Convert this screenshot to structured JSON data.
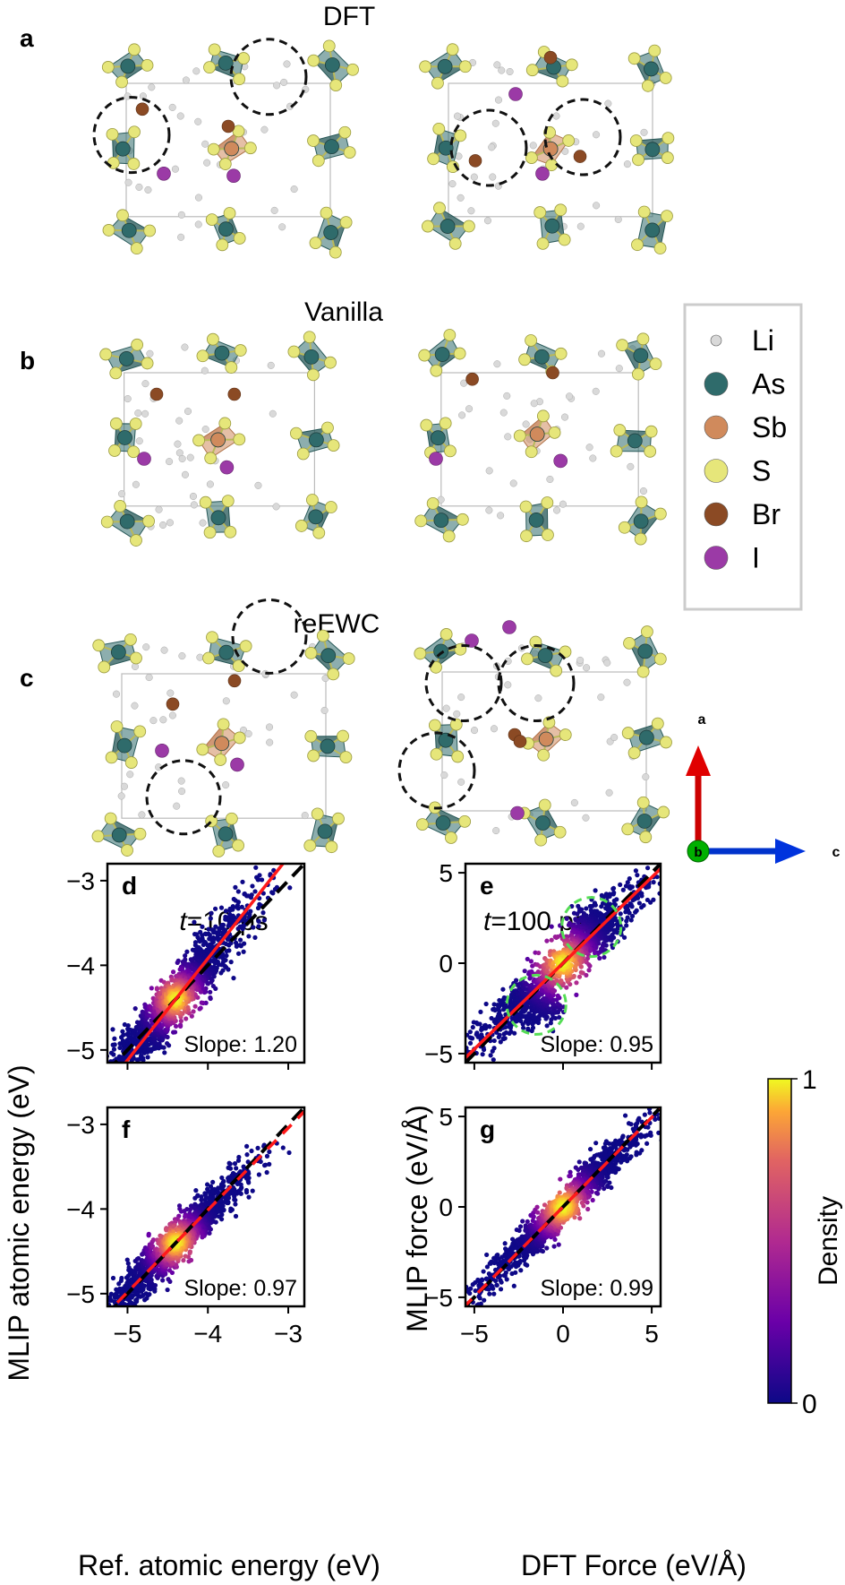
{
  "panel_letters": {
    "a": "a",
    "b": "b",
    "c": "c",
    "d": "d",
    "e": "e",
    "f": "f",
    "g": "g"
  },
  "row_titles": {
    "a": "DFT",
    "b": "Vanilla",
    "c": "reEWC"
  },
  "time_labels": {
    "t1_var": "t",
    "t1_rest": "=10 ps",
    "t2_var": "t",
    "t2_rest": "=100 ps"
  },
  "legend": {
    "items": [
      {
        "label": "Li",
        "color": "#d9d9d9",
        "size": "small"
      },
      {
        "label": "As",
        "color": "#2f6b6b",
        "size": "large"
      },
      {
        "label": "Sb",
        "color": "#d08a5c",
        "size": "large"
      },
      {
        "label": "S",
        "color": "#e6e67a",
        "size": "large"
      },
      {
        "label": "Br",
        "color": "#8b4a24",
        "size": "large"
      },
      {
        "label": "I",
        "color": "#9b3aa6",
        "size": "large"
      }
    ]
  },
  "axes_triad": {
    "a": "a",
    "b": "b",
    "c": "c",
    "a_color": "#e00000",
    "b_color": "#00a000",
    "c_color": "#0033dd"
  },
  "shared_labels": {
    "energy_y": "MLIP atomic energy (eV)",
    "energy_x": "Ref. atomic energy (eV)",
    "force_y": "MLIP force (eV/Å)",
    "force_x": "DFT Force (eV/Å)"
  },
  "colorbar": {
    "label": "Density",
    "min": "0",
    "max": "1"
  },
  "chart_data": [
    {
      "id": "d",
      "type": "scatter",
      "xlim": [
        -5.25,
        -2.8
      ],
      "ylim": [
        -5.15,
        -2.8
      ],
      "xticks": [
        -5,
        -4,
        -3
      ],
      "yticks": [
        -5,
        -4,
        -3
      ],
      "slope": 1.2,
      "slope_text": "Slope: 1.20",
      "center": [
        -4.4,
        -4.4
      ],
      "spread": 0.45,
      "width": 0.12,
      "fit_through": [
        -4.4,
        -4.4
      ],
      "show_xticklabels": false
    },
    {
      "id": "e",
      "type": "scatter",
      "xlim": [
        -5.5,
        5.5
      ],
      "ylim": [
        -5.5,
        5.5
      ],
      "xticks": [
        -5,
        0,
        5
      ],
      "yticks": [
        -5,
        0,
        5
      ],
      "slope": 0.95,
      "slope_text": "Slope: 0.95",
      "center": [
        0,
        0
      ],
      "spread": 2.4,
      "width": 0.55,
      "fit_through": [
        0,
        0
      ],
      "show_xticklabels": false,
      "clusters": [
        [
          1.6,
          1.9
        ],
        [
          -1.5,
          -2.3
        ]
      ],
      "highlight_circles": [
        [
          1.6,
          2.0
        ],
        [
          -1.5,
          -2.3
        ]
      ]
    },
    {
      "id": "f",
      "type": "scatter",
      "xlim": [
        -5.25,
        -2.8
      ],
      "ylim": [
        -5.15,
        -2.8
      ],
      "xticks": [
        -5,
        -4,
        -3
      ],
      "yticks": [
        -5,
        -4,
        -3
      ],
      "slope": 0.97,
      "slope_text": "Slope: 0.97",
      "center": [
        -4.4,
        -4.4
      ],
      "spread": 0.45,
      "width": 0.1,
      "fit_through": [
        -4.4,
        -4.4
      ],
      "show_xticklabels": true
    },
    {
      "id": "g",
      "type": "scatter",
      "xlim": [
        -5.5,
        5.5
      ],
      "ylim": [
        -5.5,
        5.5
      ],
      "xticks": [
        -5,
        0,
        5
      ],
      "yticks": [
        -5,
        0,
        5
      ],
      "slope": 0.99,
      "slope_text": "Slope: 0.99",
      "center": [
        0,
        0
      ],
      "spread": 2.3,
      "width": 0.4,
      "fit_through": [
        0,
        0
      ],
      "show_xticklabels": true
    }
  ]
}
